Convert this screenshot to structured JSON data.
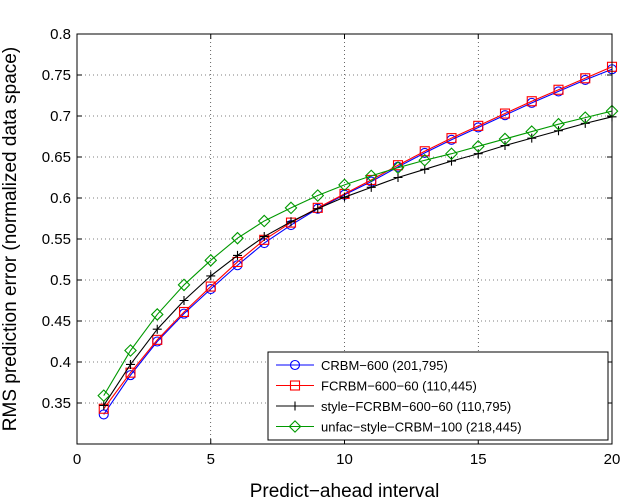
{
  "chart_data": {
    "type": "line",
    "title": "",
    "xlabel": "Predict−ahead interval",
    "ylabel": "RMS prediction error (normalized data space)",
    "xlim": [
      0,
      20
    ],
    "ylim": [
      0.3,
      0.8
    ],
    "xticks": [
      "0",
      "5",
      "10",
      "15",
      "20"
    ],
    "yticks": [
      "0.35",
      "0.4",
      "0.45",
      "0.5",
      "0.55",
      "0.6",
      "0.65",
      "0.7",
      "0.75",
      "0.8"
    ],
    "grid": true,
    "legend_position": "bottom-right",
    "x": [
      1,
      2,
      3,
      4,
      5,
      6,
      7,
      8,
      9,
      10,
      11,
      12,
      13,
      14,
      15,
      16,
      17,
      18,
      19,
      20
    ],
    "series": [
      {
        "name": "CRBM−600 (201,795)",
        "color": "#0000ff",
        "marker": "circle",
        "values": [
          0.336,
          0.384,
          0.425,
          0.459,
          0.489,
          0.518,
          0.545,
          0.567,
          0.587,
          0.604,
          0.62,
          0.638,
          0.655,
          0.671,
          0.686,
          0.701,
          0.716,
          0.73,
          0.744,
          0.757
        ]
      },
      {
        "name": "FCRBM−600−60 (110,445)",
        "color": "#ff0000",
        "marker": "square",
        "values": [
          0.343,
          0.387,
          0.427,
          0.461,
          0.492,
          0.522,
          0.549,
          0.57,
          0.588,
          0.605,
          0.622,
          0.64,
          0.657,
          0.673,
          0.688,
          0.703,
          0.718,
          0.732,
          0.746,
          0.76
        ]
      },
      {
        "name": "style−FCRBM−600−60 (110,795)",
        "color": "#000000",
        "marker": "plus",
        "values": [
          0.347,
          0.397,
          0.44,
          0.475,
          0.505,
          0.53,
          0.553,
          0.571,
          0.587,
          0.601,
          0.613,
          0.625,
          0.635,
          0.645,
          0.654,
          0.664,
          0.673,
          0.682,
          0.691,
          0.699
        ]
      },
      {
        "name": "unfac−style−CRBM−100 (218,445)",
        "color": "#009900",
        "marker": "diamond",
        "values": [
          0.359,
          0.414,
          0.458,
          0.494,
          0.524,
          0.551,
          0.572,
          0.588,
          0.603,
          0.616,
          0.627,
          0.637,
          0.646,
          0.654,
          0.663,
          0.672,
          0.681,
          0.69,
          0.698,
          0.706
        ]
      }
    ]
  }
}
